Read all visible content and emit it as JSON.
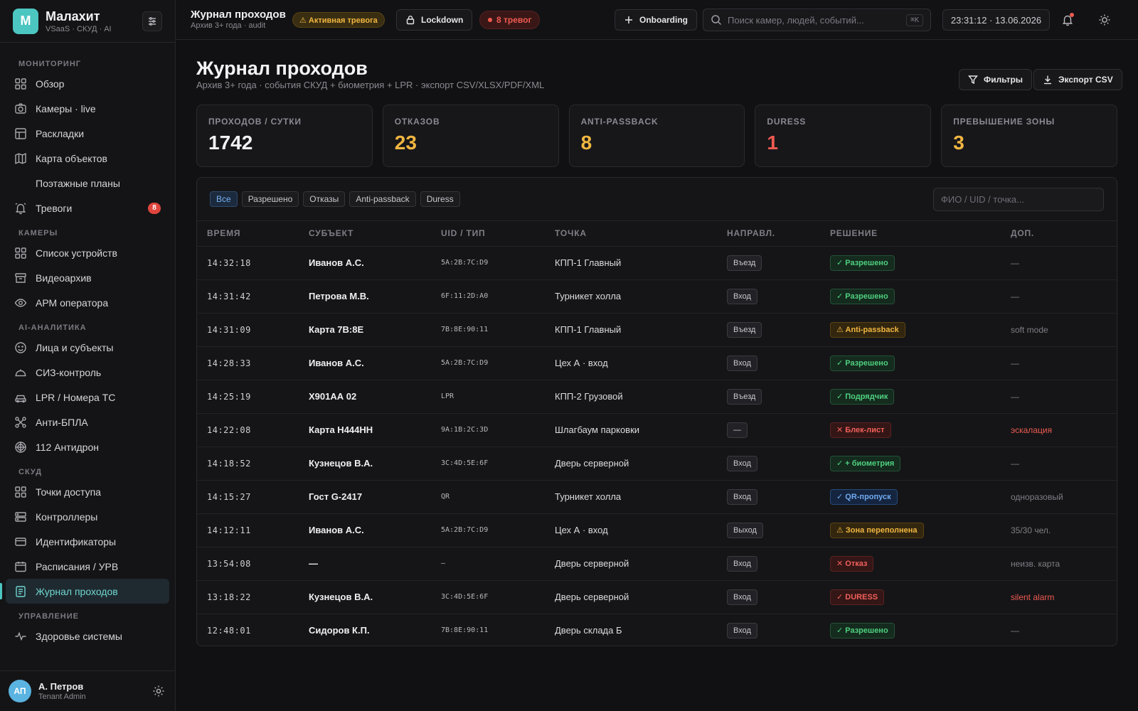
{
  "brand": {
    "name": "Малахит",
    "sub": "VSaaS · СКУД · AI",
    "logo_letter": "M",
    "accent": "#4cc6c1"
  },
  "sidebar": {
    "sections": [
      {
        "title": "МОНИТОРИНГ",
        "items": [
          {
            "label": "Обзор",
            "icon": "grid-icon"
          },
          {
            "label": "Камеры · live",
            "icon": "camera-icon"
          },
          {
            "label": "Раскладки",
            "icon": "layout-icon"
          },
          {
            "label": "Карта объектов",
            "icon": "map-icon"
          },
          {
            "label": "Поэтажные планы",
            "icon": "",
            "sub": true
          },
          {
            "label": "Тревоги",
            "icon": "alarm-icon",
            "badge": "8"
          }
        ]
      },
      {
        "title": "КАМЕРЫ",
        "items": [
          {
            "label": "Список устройств",
            "icon": "devices-icon"
          },
          {
            "label": "Видеоархив",
            "icon": "archive-icon"
          },
          {
            "label": "АРМ оператора",
            "icon": "eye-icon"
          }
        ]
      },
      {
        "title": "AI-АНАЛИТИКА",
        "items": [
          {
            "label": "Лица и субъекты",
            "icon": "face-icon"
          },
          {
            "label": "СИЗ-контроль",
            "icon": "helmet-icon"
          },
          {
            "label": "LPR / Номера ТС",
            "icon": "car-icon"
          },
          {
            "label": "Анти-БПЛА",
            "icon": "drone-icon"
          },
          {
            "label": "112 Антидрон",
            "icon": "radar-icon"
          }
        ]
      },
      {
        "title": "СКУД",
        "items": [
          {
            "label": "Точки доступа",
            "icon": "door-icon"
          },
          {
            "label": "Контроллеры",
            "icon": "server-icon"
          },
          {
            "label": "Идентификаторы",
            "icon": "card-icon"
          },
          {
            "label": "Расписания / УРВ",
            "icon": "calendar-icon"
          },
          {
            "label": "Журнал проходов",
            "icon": "log-icon",
            "active": true
          }
        ]
      },
      {
        "title": "УПРАВЛЕНИЕ",
        "items": [
          {
            "label": "Здоровье системы",
            "icon": "pulse-icon"
          }
        ]
      }
    ]
  },
  "user": {
    "initials": "АП",
    "name": "А. Петров",
    "role": "Tenant Admin"
  },
  "topbar": {
    "title": "Журнал проходов",
    "subtitle": "Архив 3+ года · audit",
    "alert_pill": "⚠ Активная тревога",
    "lockdown_label": "Lockdown",
    "alarms_label": "8 тревог",
    "onboarding_label": "Onboarding",
    "search_placeholder": "Поиск камер, людей, событий...",
    "search_kbd": "⌘K",
    "clock": "23:31:12 · 13.06.2026"
  },
  "page": {
    "title": "Журнал проходов",
    "subtitle": "Архив 3+ года · события СКУД + биометрия + LPR · экспорт CSV/XLSX/PDF/XML",
    "filters_label": "Фильтры",
    "export_label": "Экспорт CSV"
  },
  "kpis": [
    {
      "label": "ПРОХОДОВ / СУТКИ",
      "value": "1742",
      "color": "#f2f2f4"
    },
    {
      "label": "ОТКАЗОВ",
      "value": "23",
      "color": "#f1b640"
    },
    {
      "label": "ANTI-PASSBACK",
      "value": "8",
      "color": "#f1b640"
    },
    {
      "label": "DURESS",
      "value": "1",
      "color": "#ef5a50"
    },
    {
      "label": "ПРЕВЫШЕНИЕ ЗОНЫ",
      "value": "3",
      "color": "#f1b640"
    }
  ],
  "filter_chips": [
    {
      "label": "Все",
      "active": true
    },
    {
      "label": "Разрешено"
    },
    {
      "label": "Отказы"
    },
    {
      "label": "Anti-passback"
    },
    {
      "label": "Duress"
    }
  ],
  "table_search_placeholder": "ФИО / UID / точка...",
  "columns": [
    "ВРЕМЯ",
    "СУБЪЕКТ",
    "UID / ТИП",
    "ТОЧКА",
    "НАПРАВЛ.",
    "РЕШЕНИЕ",
    "ДОП."
  ],
  "rows": [
    {
      "time": "14:32:18",
      "subject": "Иванов А.С.",
      "uid": "5A:2B:7C:D9",
      "point": "КПП-1 Главный",
      "dir": "Въезд",
      "decision": "✓ Разрешено",
      "kind": "ok",
      "extra": "—"
    },
    {
      "time": "14:31:42",
      "subject": "Петрова М.В.",
      "uid": "6F:11:2D:A0",
      "point": "Турникет холла",
      "dir": "Вход",
      "decision": "✓ Разрешено",
      "kind": "ok",
      "extra": "—"
    },
    {
      "time": "14:31:09",
      "subject": "Карта 7B:8E",
      "uid": "7B:8E:90:11",
      "point": "КПП-1 Главный",
      "dir": "Въезд",
      "decision": "⚠ Anti-passback",
      "kind": "warn",
      "extra": "soft mode"
    },
    {
      "time": "14:28:33",
      "subject": "Иванов А.С.",
      "uid": "5A:2B:7C:D9",
      "point": "Цех А · вход",
      "dir": "Вход",
      "decision": "✓ Разрешено",
      "kind": "ok",
      "extra": "—"
    },
    {
      "time": "14:25:19",
      "subject": "Х901АА 02",
      "uid": "LPR",
      "point": "КПП-2 Грузовой",
      "dir": "Въезд",
      "decision": "✓ Подрядчик",
      "kind": "ok",
      "extra": "—"
    },
    {
      "time": "14:22:08",
      "subject": "Карта Н444НН",
      "uid": "9A:1B:2C:3D",
      "point": "Шлагбаум парковки",
      "dir": "—",
      "decision": "✕ Блек-лист",
      "kind": "bad",
      "extra": "эскалация",
      "extra_red": true
    },
    {
      "time": "14:18:52",
      "subject": "Кузнецов В.А.",
      "uid": "3C:4D:5E:6F",
      "point": "Дверь серверной",
      "dir": "Вход",
      "decision": "✓ + биометрия",
      "kind": "ok",
      "extra": "—"
    },
    {
      "time": "14:15:27",
      "subject": "Гост G-2417",
      "uid": "QR",
      "point": "Турникет холла",
      "dir": "Вход",
      "decision": "✓ QR-пропуск",
      "kind": "info",
      "extra": "одноразовый"
    },
    {
      "time": "14:12:11",
      "subject": "Иванов А.С.",
      "uid": "5A:2B:7C:D9",
      "point": "Цех А · вход",
      "dir": "Выход",
      "decision": "⚠ Зона переполнена",
      "kind": "warn",
      "extra": "35/30 чел."
    },
    {
      "time": "13:54:08",
      "subject": "—",
      "uid": "—",
      "point": "Дверь серверной",
      "dir": "Вход",
      "decision": "✕ Отказ",
      "kind": "bad",
      "extra": "неизв. карта"
    },
    {
      "time": "13:18:22",
      "subject": "Кузнецов В.А.",
      "uid": "3C:4D:5E:6F",
      "point": "Дверь серверной",
      "dir": "Вход",
      "decision": "✓ DURESS",
      "kind": "bad",
      "extra": "silent alarm",
      "extra_red": true
    },
    {
      "time": "12:48:01",
      "subject": "Сидоров К.П.",
      "uid": "7B:8E:90:11",
      "point": "Дверь склада Б",
      "dir": "Вход",
      "decision": "✓ Разрешено",
      "kind": "ok",
      "extra": "—"
    }
  ]
}
